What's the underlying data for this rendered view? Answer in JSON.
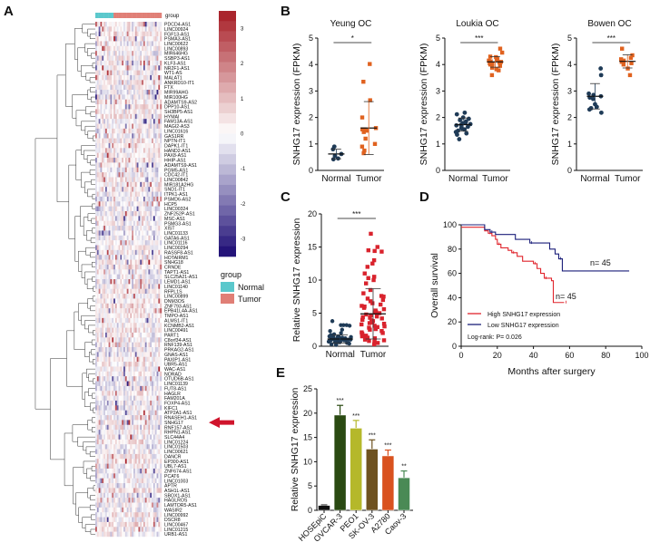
{
  "panels": {
    "a": "A",
    "b": "B",
    "c": "C",
    "d": "D",
    "e": "E"
  },
  "heatmap": {
    "group_label": "group",
    "legend_title": "group",
    "groups": [
      {
        "name": "Normal",
        "color": "#5bc8cc"
      },
      {
        "name": "Tumor",
        "color": "#e07f76"
      }
    ],
    "colorbar_ticks": [
      "3",
      "2",
      "1",
      "0",
      "-1",
      "-2",
      "-3"
    ],
    "high_color": "#a61c24",
    "low_color": "#1a0a73",
    "highlight_gene": "SNHG17",
    "genes": [
      "PDCD4-AS1",
      "LINC00924",
      "FGF13-AS1",
      "PSMA3-AS1",
      "LINC00622",
      "LINC00893",
      "MIR646HG",
      "SSBP3-AS1",
      "KLF3-AS1",
      "NR2F1-AS1",
      "WT1-AS",
      "MALAT1",
      "ANKRD10-IT1",
      "FTX",
      "MIR99AHG",
      "MIR100HG",
      "ADAMTS9-AS2",
      "DPP10-AS1",
      "SH3BP5-AS1",
      "HYMAI",
      "FAM13A-AS1",
      "MAGI2-AS3",
      "LINC01616",
      "GAS1RR",
      "NPTN-IT1",
      "DAPK1-IT1",
      "HAND2-AS1",
      "PAX8-AS1",
      "HHIP-AS1",
      "ADAMTS9-AS1",
      "PGM5-AS1",
      "CDC42-IT1",
      "LINC00842",
      "MIR181A2HG",
      "SND1-IT1",
      "ITPK1-AS1",
      "PSMD6-AS2",
      "HCP5",
      "LINC00324",
      "ZNF252P-AS1",
      "MSC-AS1",
      "PSMG3-AS1",
      "XIST",
      "LINC01133",
      "GATA6-AS1",
      "LINC01116",
      "LINC00294",
      "RASSF8-AS1",
      "HOTAIRM1",
      "SNHG18",
      "CRNDE",
      "TAPT1-AS1",
      "SLC25A21-AS1",
      "LEMD1-AS1",
      "LINC01140",
      "RFPL1S",
      "LINC00899",
      "DNM3OS",
      "ZNF793-AS1",
      "EPB41L4A-AS1",
      "TMPO-AS1",
      "ALMS1-IT1",
      "KCNMB2-AS1",
      "LINC00491",
      "PART1",
      "C8orf34-AS1",
      "RNF139-AS1",
      "PRKAG2-AS1",
      "GNAS-AS1",
      "PAXIP1-AS1",
      "UBR5-AS1",
      "WAC-AS1",
      "NORAD",
      "OTUD6B-AS1",
      "LINC01139",
      "FUT8-AS1",
      "HAGLR",
      "FAM201A",
      "FOXP4-AS1",
      "KIFC1",
      "ATP2A1-AS1",
      "RNASEH1-AS1",
      "SNHG17",
      "RNF157-AS1",
      "RHPN1-AS1",
      "SLC44A4",
      "LINC01224",
      "LINC01503",
      "LINC00621",
      "DANCR",
      "EP300-AS1",
      "UBL7-AS1",
      "ZNF674-AS1",
      "PCAT6",
      "LINC01003",
      "APTR",
      "ASH1L-AS1",
      "SBOX1-AS1",
      "HAGLROS",
      "LAMTOR5-AS1",
      "WASIR2",
      "LINC00992",
      "DSCR8",
      "LINC00467",
      "LINC01215",
      "URB1-AS1"
    ]
  },
  "chart_data": [
    {
      "id": "B1",
      "type": "scatter",
      "title": "Yeung OC",
      "ylabel": "SNHG17 expression (FPKM)",
      "categories": [
        "Normal",
        "Tumor"
      ],
      "ylim": [
        0,
        5
      ],
      "yticks": [
        "0",
        "1",
        "2",
        "3",
        "4",
        "5"
      ],
      "significance": "*",
      "series": [
        {
          "name": "Normal",
          "color": "#1f3b57",
          "values": [
            0.9,
            0.8,
            0.62,
            0.55,
            0.45,
            0.42
          ],
          "mean": 0.62,
          "sd": 0.18
        },
        {
          "name": "Tumor",
          "color": "#e0621f",
          "values": [
            4.02,
            3.35,
            2.65,
            2.0,
            1.6,
            1.55,
            1.5,
            1.45,
            1.2,
            1.0,
            0.9,
            0.75,
            0.65,
            1.55
          ],
          "mean": 1.6,
          "sd": 1.0
        }
      ]
    },
    {
      "id": "B2",
      "type": "scatter",
      "title": "Loukia OC",
      "ylabel": "SNHG17 expression (FPKM)",
      "categories": [
        "Normal",
        "Tumor"
      ],
      "ylim": [
        0,
        5
      ],
      "yticks": [
        "0",
        "1",
        "2",
        "3",
        "4",
        "5"
      ],
      "significance": "***",
      "series": [
        {
          "name": "Normal",
          "color": "#1f3b57",
          "values": [
            2.18,
            2.12,
            2.0,
            1.95,
            1.9,
            1.85,
            1.8,
            1.78,
            1.75,
            1.72,
            1.7,
            1.65,
            1.6,
            1.58,
            1.55,
            1.5,
            1.45,
            1.4,
            1.35,
            1.18
          ],
          "mean": 1.73,
          "sd": 0.25
        },
        {
          "name": "Tumor",
          "color": "#e0621f",
          "values": [
            4.6,
            4.45,
            4.3,
            4.28,
            4.22,
            4.2,
            4.15,
            4.12,
            4.1,
            4.08,
            4.05,
            4.02,
            4.0,
            3.95,
            3.88,
            3.82,
            3.78,
            3.6
          ],
          "mean": 4.1,
          "sd": 0.2
        }
      ]
    },
    {
      "id": "B3",
      "type": "scatter",
      "title": "Bowen OC",
      "ylabel": "SNHG17 expression (FPKM)",
      "categories": [
        "Normal",
        "Tumor"
      ],
      "ylim": [
        0,
        5
      ],
      "yticks": [
        "0",
        "1",
        "2",
        "3",
        "4",
        "5"
      ],
      "significance": "***",
      "series": [
        {
          "name": "Normal",
          "color": "#1f3b57",
          "values": [
            3.85,
            3.6,
            2.9,
            2.85,
            2.8,
            2.75,
            2.7,
            2.5,
            2.4,
            2.35,
            2.3,
            2.18
          ],
          "mean": 2.8,
          "sd": 0.48
        },
        {
          "name": "Tumor",
          "color": "#e0621f",
          "values": [
            4.6,
            4.35,
            4.25,
            4.2,
            4.15,
            4.1,
            4.05,
            4.0,
            3.85,
            3.6
          ],
          "mean": 4.12,
          "sd": 0.25
        }
      ]
    },
    {
      "id": "C",
      "type": "scatter",
      "title": "",
      "ylabel": "Relative SNHG17 expression",
      "categories": [
        "Normal",
        "Tumor"
      ],
      "ylim": [
        0,
        20
      ],
      "yticks": [
        "0",
        "5",
        "10",
        "15",
        "20"
      ],
      "significance": "***",
      "series": [
        {
          "name": "Normal",
          "color": "#1f3b57",
          "values": [
            3.8,
            3.2,
            3.2,
            3.1,
            3.2,
            2.5,
            2.3,
            2.0,
            1.8,
            1.7,
            1.6,
            1.5,
            1.5,
            1.4,
            1.4,
            1.3,
            1.3,
            1.2,
            1.2,
            1.2,
            1.1,
            1.1,
            1.0,
            1.0,
            1.0,
            0.9,
            0.9,
            0.9,
            0.8,
            0.8,
            0.8,
            0.7,
            0.7,
            0.6,
            0.6,
            0.5,
            0.5,
            0.4,
            0.3,
            0.2,
            1.0,
            1.1,
            0.9,
            1.3,
            0.7
          ],
          "mean": 1.1,
          "sd": 0.6
        },
        {
          "name": "Tumor",
          "color": "#d9232d",
          "values": [
            17.0,
            15.0,
            14.5,
            14.4,
            14.3,
            13.0,
            12.5,
            12.0,
            11.0,
            10.5,
            10.3,
            10.0,
            9.5,
            8.5,
            8.0,
            7.6,
            7.5,
            7.2,
            7.0,
            6.8,
            6.5,
            6.3,
            6.0,
            5.8,
            5.6,
            5.4,
            5.2,
            5.0,
            4.8,
            4.7,
            4.5,
            4.3,
            4.2,
            4.0,
            3.8,
            3.6,
            3.5,
            3.3,
            3.1,
            3.0,
            2.8,
            2.6,
            2.5,
            2.3,
            2.1,
            2.0,
            1.8,
            1.6,
            1.5,
            1.3,
            1.2,
            1.0,
            0.9,
            0.7,
            0.5,
            0.3,
            5.1,
            4.4,
            3.9,
            6.1,
            2.9,
            1.9,
            0.8,
            3.4
          ],
          "mean": 4.9,
          "sd": 3.8
        }
      ]
    },
    {
      "id": "D",
      "type": "line",
      "xlabel": "Months after surgery",
      "ylabel": "Overall survival",
      "xlim": [
        0,
        100
      ],
      "ylim": [
        0,
        100
      ],
      "xticks": [
        "0",
        "20",
        "40",
        "60",
        "80",
        "100"
      ],
      "yticks": [
        "0",
        "20",
        "40",
        "60",
        "80",
        "100"
      ],
      "annotation": "Log-rank: P= 0.026",
      "series": [
        {
          "name": "High SNHG17 expression",
          "color": "#e0242c",
          "n_label": "n= 45",
          "points": [
            [
              0,
              98
            ],
            [
              11,
              98
            ],
            [
              13,
              95
            ],
            [
              15,
              93
            ],
            [
              17,
              91
            ],
            [
              19,
              88
            ],
            [
              20,
              84
            ],
            [
              22,
              81
            ],
            [
              26,
              79
            ],
            [
              28,
              77
            ],
            [
              31,
              74
            ],
            [
              34,
              70
            ],
            [
              40,
              68
            ],
            [
              42,
              64
            ],
            [
              44,
              60
            ],
            [
              46,
              56
            ],
            [
              50,
              54
            ],
            [
              51,
              36
            ],
            [
              57,
              36
            ]
          ]
        },
        {
          "name": "Low SNHG17 expression",
          "color": "#1b1f7a",
          "n_label": "n= 45",
          "points": [
            [
              0,
              100
            ],
            [
              11,
              100
            ],
            [
              13,
              96
            ],
            [
              16,
              94
            ],
            [
              19,
              92
            ],
            [
              30,
              88
            ],
            [
              38,
              85
            ],
            [
              49,
              80
            ],
            [
              52,
              76
            ],
            [
              54,
              72
            ],
            [
              56,
              62
            ],
            [
              93,
              62
            ]
          ]
        }
      ]
    },
    {
      "id": "E",
      "type": "bar",
      "ylabel": "Relative SNHG17 expression",
      "ylim": [
        0,
        25
      ],
      "yticks": [
        "0",
        "5",
        "10",
        "15",
        "20",
        "25"
      ],
      "categories": [
        "HOSEpiC",
        "OVCAR-3",
        "PEO1",
        "SK-OV-3",
        "A2780",
        "Caov-3"
      ],
      "values": [
        1.0,
        19.6,
        16.9,
        12.6,
        11.2,
        6.7
      ],
      "errors": [
        0.1,
        2.0,
        1.6,
        1.9,
        1.2,
        1.4
      ],
      "significance": [
        "",
        "***",
        "***",
        "***",
        "***",
        "**"
      ],
      "colors": [
        "#111111",
        "#2a4a12",
        "#b5b82a",
        "#6e5220",
        "#d9521f",
        "#4a8a55"
      ]
    }
  ]
}
